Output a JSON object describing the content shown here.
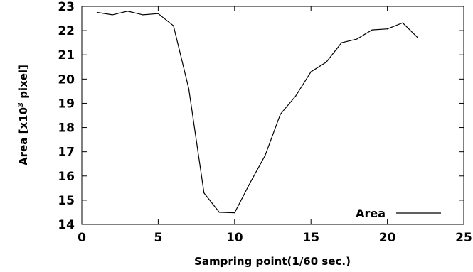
{
  "chart_data": {
    "type": "line",
    "title": "",
    "xlabel": "Sampring point(1/60 sec.)",
    "ylabel": {
      "prefix": "Area [x10",
      "superscript": "3",
      "suffix": " pixel]"
    },
    "xlim": [
      0,
      25
    ],
    "ylim": [
      14,
      23
    ],
    "xticks": [
      0,
      5,
      10,
      15,
      20,
      25
    ],
    "yticks": [
      14,
      15,
      16,
      17,
      18,
      19,
      20,
      21,
      22,
      23
    ],
    "grid": false,
    "legend_position": "bottom-right",
    "series": [
      {
        "name": "Area",
        "color": "#000000",
        "x": [
          1,
          2,
          3,
          4,
          5,
          6,
          7,
          8,
          9,
          10,
          11,
          12,
          13,
          14,
          15,
          16,
          17,
          18,
          19,
          20,
          21,
          22
        ],
        "y": [
          22.75,
          22.65,
          22.8,
          22.65,
          22.7,
          22.2,
          19.6,
          15.3,
          14.5,
          14.48,
          15.7,
          16.85,
          18.55,
          19.3,
          20.3,
          20.7,
          21.5,
          21.65,
          22.03,
          22.07,
          22.32,
          21.7
        ]
      }
    ]
  }
}
